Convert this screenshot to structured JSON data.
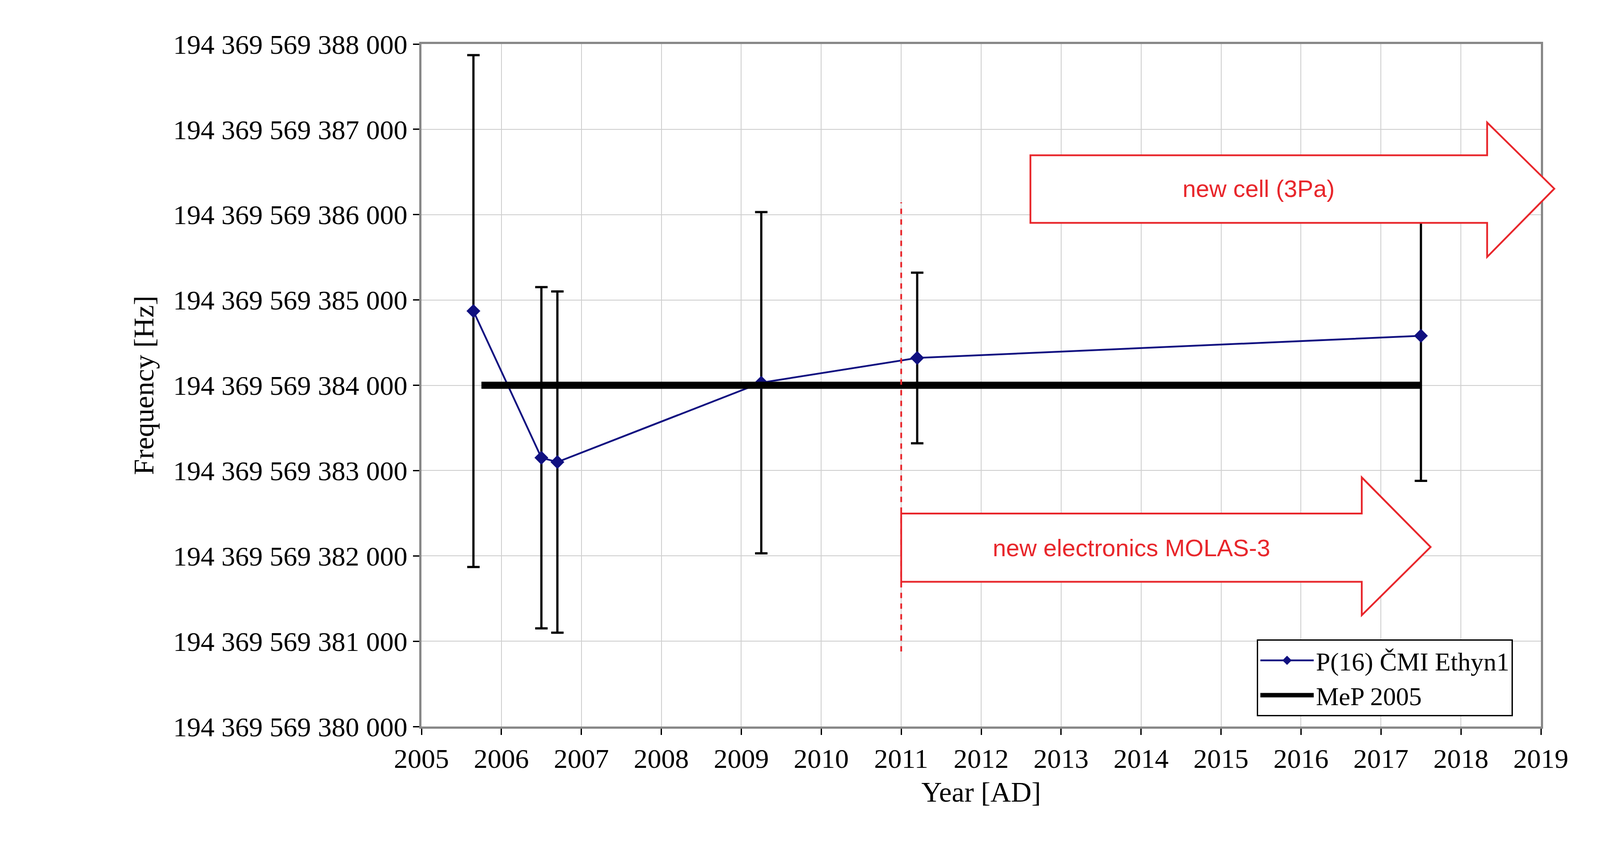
{
  "chart_data": {
    "type": "line",
    "x_label": "Year [AD]",
    "y_label": "Frequency [Hz]",
    "xlim": [
      2005,
      2019
    ],
    "xticks": [
      2005,
      2006,
      2007,
      2008,
      2009,
      2010,
      2011,
      2012,
      2013,
      2014,
      2015,
      2016,
      2017,
      2018,
      2019
    ],
    "ylim": [
      194369569380000,
      194369569388000
    ],
    "yticks": [
      {
        "value": 194369569380000,
        "label": "194 369 569 380 000"
      },
      {
        "value": 194369569381000,
        "label": "194 369 569 381 000"
      },
      {
        "value": 194369569382000,
        "label": "194 369 569 382 000"
      },
      {
        "value": 194369569383000,
        "label": "194 369 569 383 000"
      },
      {
        "value": 194369569384000,
        "label": "194 369 569 384 000"
      },
      {
        "value": 194369569385000,
        "label": "194 369 569 385 000"
      },
      {
        "value": 194369569386000,
        "label": "194 369 569 386 000"
      },
      {
        "value": 194369569387000,
        "label": "194 369 569 387 000"
      },
      {
        "value": 194369569388000,
        "label": "194 369 569 388 000"
      }
    ],
    "grid": true,
    "legend": "lower right",
    "series": [
      {
        "name": "P(16) ČMI Ethyn1",
        "color": "#101080",
        "marker": "diamond",
        "line_style": "solid",
        "x": [
          2005.65,
          2006.5,
          2006.7,
          2009.25,
          2011.2,
          2017.5
        ],
        "values": [
          194369569384870,
          194369569383150,
          194369569383100,
          194369569384030,
          194369569384320,
          194369569384580
        ],
        "errors": [
          3000,
          2000,
          2000,
          2000,
          1000,
          1700
        ]
      },
      {
        "name": "MeP 2005",
        "color": "#000000",
        "line_style": "solid",
        "x": [
          2005.75,
          2017.5
        ],
        "values": [
          194369569384000,
          194369569384000
        ]
      }
    ],
    "annotations": [
      {
        "text": "new cell (3Pa)"
      },
      {
        "text": "new electronics MOLAS-3",
        "x": 2011
      }
    ]
  }
}
